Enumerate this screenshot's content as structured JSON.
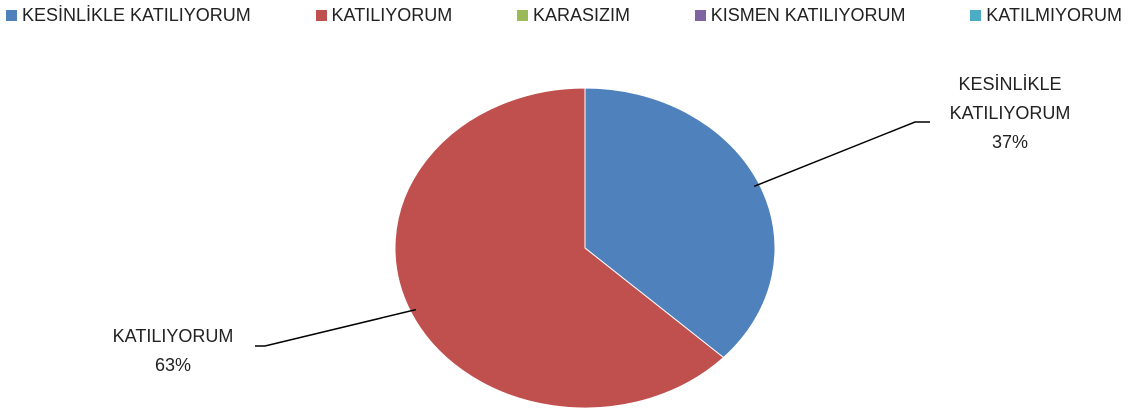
{
  "chart_data": {
    "type": "pie",
    "categories": [
      "KESİNLİKLE KATILIYORUM",
      "KATILIYORUM",
      "KARASIZIM",
      "KISMEN KATILIYORUM",
      "KATILMIYORUM"
    ],
    "values": [
      37,
      63,
      0,
      0,
      0
    ],
    "value_labels": [
      "37%",
      "63%",
      null,
      null,
      null
    ],
    "colors": [
      "#4f81bd",
      "#c0504d",
      "#9bbb59",
      "#8064a2",
      "#4bacc6"
    ],
    "legend": "top"
  }
}
